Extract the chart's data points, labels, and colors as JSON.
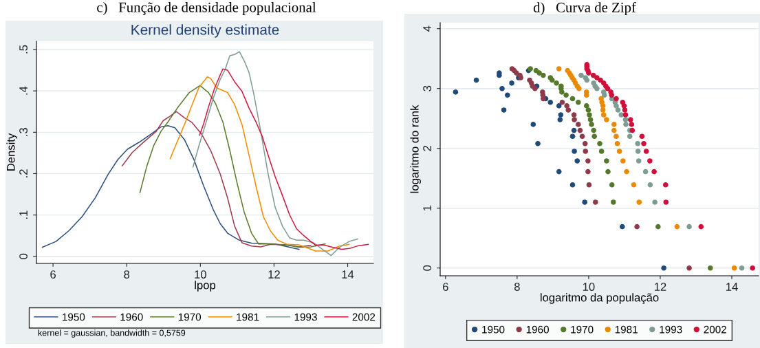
{
  "chart_data": [
    {
      "type": "line",
      "title": "c)   Função de densidade populacional",
      "subtitle": "Kernel density estimate",
      "xlabel": "lpop",
      "ylabel": "Density",
      "xlim": [
        5.55,
        14.7
      ],
      "ylim": [
        -0.017,
        0.52
      ],
      "xticks": [
        6,
        8,
        10,
        12,
        14
      ],
      "yticks": [
        0,
        {
          "value": 0.1,
          "label": ".1"
        },
        {
          "value": 0.2,
          "label": ".2"
        },
        {
          "value": 0.3,
          "label": ".3"
        },
        {
          "value": 0.4,
          "label": ".4"
        },
        {
          "value": 0.5,
          "label": ".5"
        }
      ],
      "grid": "y",
      "legend": "bottom",
      "line_style": "solid",
      "marker": "none",
      "annotations": [
        "kernel = gaussian, bandwidth = 0,5759"
      ],
      "series": [
        {
          "name": "1950",
          "color": "#2c4f7c",
          "x": [
            5.71,
            6.08,
            6.43,
            6.79,
            7.15,
            7.5,
            7.76,
            8.02,
            8.34,
            8.67,
            8.93,
            9.12,
            9.31,
            9.57,
            9.83,
            10.09,
            10.35,
            10.54,
            10.74,
            11.06,
            11.39,
            12.03,
            12.68
          ],
          "values": [
            0.022,
            0.036,
            0.062,
            0.096,
            0.142,
            0.199,
            0.234,
            0.259,
            0.276,
            0.296,
            0.313,
            0.316,
            0.311,
            0.282,
            0.233,
            0.17,
            0.113,
            0.079,
            0.056,
            0.039,
            0.032,
            0.03,
            0.017
          ]
        },
        {
          "name": "1960",
          "color": "#9c3a4e",
          "x": [
            7.88,
            8.15,
            8.47,
            8.8,
            8.99,
            9.18,
            9.35,
            9.57,
            9.77,
            10.03,
            10.28,
            10.54,
            10.74,
            10.93,
            11.13,
            11.39,
            11.64,
            11.9,
            12.36,
            12.68,
            13.0
          ],
          "values": [
            0.219,
            0.251,
            0.277,
            0.302,
            0.328,
            0.339,
            0.35,
            0.335,
            0.324,
            0.296,
            0.256,
            0.199,
            0.141,
            0.073,
            0.033,
            0.025,
            0.023,
            0.029,
            0.028,
            0.023,
            0.027
          ]
        },
        {
          "name": "1970",
          "color": "#5a7a2e",
          "x": [
            8.36,
            8.54,
            8.73,
            8.93,
            9.12,
            9.38,
            9.7,
            9.99,
            10.22,
            10.41,
            10.61,
            10.8,
            11.0,
            11.19,
            11.39,
            11.58,
            11.9,
            12.36,
            12.68,
            13.0,
            13.39
          ],
          "values": [
            0.154,
            0.216,
            0.267,
            0.302,
            0.325,
            0.359,
            0.396,
            0.413,
            0.396,
            0.37,
            0.325,
            0.256,
            0.176,
            0.107,
            0.056,
            0.03,
            0.03,
            0.027,
            0.022,
            0.023,
            0.03
          ]
        },
        {
          "name": "1981",
          "color": "#f28c00",
          "x": [
            9.18,
            9.38,
            9.57,
            9.77,
            9.96,
            10.19,
            10.28,
            10.45,
            10.61,
            10.74,
            10.93,
            11.13,
            11.32,
            11.51,
            11.71,
            11.9,
            12.1,
            12.36,
            12.68,
            13.13,
            13.46,
            13.78,
            14.04
          ],
          "values": [
            0.236,
            0.279,
            0.319,
            0.365,
            0.408,
            0.434,
            0.43,
            0.407,
            0.401,
            0.396,
            0.367,
            0.319,
            0.245,
            0.17,
            0.096,
            0.062,
            0.039,
            0.029,
            0.028,
            0.013,
            0.013,
            0.025,
            0.029
          ]
        },
        {
          "name": "1993",
          "color": "#7f9c94",
          "x": [
            9.8,
            9.96,
            10.16,
            10.35,
            10.54,
            10.67,
            10.8,
            10.93,
            11.06,
            11.19,
            11.32,
            11.45,
            11.64,
            11.84,
            12.03,
            12.23,
            12.42,
            12.61,
            12.81,
            13.07,
            13.33,
            13.55,
            13.78,
            14.04,
            14.27
          ],
          "values": [
            0.216,
            0.267,
            0.325,
            0.382,
            0.428,
            0.451,
            0.485,
            0.488,
            0.495,
            0.473,
            0.445,
            0.393,
            0.302,
            0.199,
            0.119,
            0.073,
            0.045,
            0.039,
            0.039,
            0.033,
            0.016,
            0.002,
            0.022,
            0.036,
            0.042
          ]
        },
        {
          "name": "2002",
          "color": "#d2173f",
          "x": [
            9.98,
            10.09,
            10.22,
            10.38,
            10.54,
            10.61,
            10.74,
            10.93,
            11.13,
            11.32,
            11.51,
            11.68,
            11.84,
            12.03,
            12.23,
            12.42,
            12.61,
            12.81,
            13.0,
            13.13,
            13.33,
            13.59,
            13.84,
            14.04,
            14.3,
            14.56
          ],
          "values": [
            0.293,
            0.321,
            0.361,
            0.405,
            0.439,
            0.453,
            0.45,
            0.422,
            0.399,
            0.359,
            0.325,
            0.29,
            0.245,
            0.193,
            0.147,
            0.101,
            0.067,
            0.05,
            0.036,
            0.027,
            0.028,
            0.022,
            0.017,
            0.019,
            0.026,
            0.029
          ]
        }
      ]
    },
    {
      "type": "scatter",
      "title": "d)   Curva de Zipf",
      "xlabel": "logaritmo da população",
      "ylabel": "logaritmo do rank",
      "xlim": [
        5.85,
        14.75
      ],
      "ylim": [
        -0.13,
        4.1
      ],
      "xticks": [
        6,
        8,
        10,
        12,
        14
      ],
      "yticks": [
        0,
        1,
        2,
        3,
        4
      ],
      "grid": "y",
      "legend": "bottom",
      "marker": "circle",
      "series": [
        {
          "name": "1950",
          "color": "#1f4a7a",
          "x": [
            12.1,
            10.94,
            9.89,
            9.55,
            9.17,
            9.68,
            9.6,
            8.58,
            9.55,
            9.59,
            8.45,
            9.2,
            9.22,
            7.63,
            9.17,
            8.93,
            8.8,
            7.73,
            6.28,
            7.58,
            8.55,
            7.85,
            6.86,
            8.04,
            7.5,
            7.5,
            8.32
          ],
          "values": [
            0,
            0.69,
            1.1,
            1.39,
            1.61,
            1.79,
            1.95,
            2.08,
            2.2,
            2.3,
            2.4,
            2.48,
            2.56,
            2.64,
            2.71,
            2.77,
            2.83,
            2.89,
            2.94,
            3.0,
            3.04,
            3.09,
            3.14,
            3.18,
            3.22,
            3.26,
            3.3
          ]
        },
        {
          "name": "1960",
          "color": "#8e3a4a",
          "x": [
            12.81,
            11.35,
            10.19,
            10.01,
            9.98,
            9.98,
            9.91,
            9.9,
            9.82,
            9.76,
            9.71,
            9.6,
            9.59,
            9.43,
            9.39,
            9.26,
            8.73,
            8.72,
            8.71,
            8.5,
            8.43,
            8.4,
            8.35,
            8.1,
            8.08,
            7.98,
            7.92,
            7.86
          ],
          "values": [
            0,
            0.69,
            1.1,
            1.39,
            1.61,
            1.79,
            1.95,
            2.08,
            2.2,
            2.3,
            2.4,
            2.48,
            2.56,
            2.64,
            2.71,
            2.77,
            2.83,
            2.89,
            2.94,
            3.0,
            3.04,
            3.09,
            3.14,
            3.18,
            3.22,
            3.26,
            3.3,
            3.33
          ]
        },
        {
          "name": "1970",
          "color": "#55792a",
          "x": [
            13.4,
            11.94,
            10.69,
            10.65,
            10.54,
            10.5,
            10.36,
            10.31,
            10.16,
            10.14,
            10.08,
            10.05,
            10.02,
            9.99,
            9.94,
            9.71,
            9.55,
            9.37,
            9.25,
            9.23,
            9.23,
            9.1,
            8.98,
            8.93,
            8.73,
            8.62,
            8.53,
            8.37
          ],
          "values": [
            0,
            0.69,
            1.1,
            1.39,
            1.61,
            1.79,
            1.95,
            2.08,
            2.2,
            2.3,
            2.4,
            2.48,
            2.56,
            2.64,
            2.71,
            2.77,
            2.83,
            2.89,
            2.94,
            3.0,
            3.04,
            3.09,
            3.14,
            3.18,
            3.22,
            3.26,
            3.3,
            3.33
          ]
        },
        {
          "name": "1981",
          "color": "#ea8a00",
          "x": [
            14.07,
            12.47,
            11.41,
            11.26,
            11.06,
            10.96,
            10.86,
            10.8,
            10.77,
            10.71,
            10.71,
            10.5,
            10.42,
            10.4,
            10.4,
            10.37,
            10.35,
            9.94,
            9.94,
            9.73,
            9.68,
            9.63,
            9.59,
            9.54,
            9.5,
            9.46,
            9.41,
            9.17
          ],
          "values": [
            0,
            0.69,
            1.1,
            1.39,
            1.61,
            1.79,
            1.95,
            2.08,
            2.2,
            2.3,
            2.4,
            2.48,
            2.56,
            2.64,
            2.71,
            2.77,
            2.83,
            2.89,
            2.94,
            3.0,
            3.04,
            3.09,
            3.14,
            3.18,
            3.22,
            3.26,
            3.3,
            3.33
          ]
        },
        {
          "name": "1993",
          "color": "#7f9c94",
          "x": [
            14.28,
            12.81,
            11.85,
            11.72,
            11.59,
            11.4,
            11.38,
            11.37,
            11.15,
            11.15,
            11.04,
            11.03,
            10.91,
            10.82,
            10.77,
            10.74,
            10.65,
            10.44,
            10.42,
            10.23,
            10.18,
            10.14,
            9.95,
            9.91,
            9.79
          ],
          "values": [
            0,
            0.69,
            1.1,
            1.39,
            1.61,
            1.79,
            1.95,
            2.08,
            2.2,
            2.3,
            2.4,
            2.48,
            2.56,
            2.64,
            2.71,
            2.77,
            2.83,
            2.89,
            2.94,
            3.0,
            3.04,
            3.09,
            3.14,
            3.18,
            3.22
          ]
        },
        {
          "name": "2002",
          "color": "#d0103a",
          "x": [
            14.58,
            13.14,
            12.16,
            12.15,
            11.83,
            11.71,
            11.61,
            11.54,
            11.49,
            11.22,
            11.2,
            11.17,
            11.03,
            11.01,
            10.99,
            10.95,
            10.77,
            10.64,
            10.62,
            10.53,
            10.48,
            10.42,
            10.33,
            10.23,
            10.13,
            10.0,
            9.98,
            9.95,
            9.95,
            9.95
          ],
          "values": [
            0,
            0.69,
            1.1,
            1.39,
            1.61,
            1.79,
            1.95,
            2.08,
            2.2,
            2.3,
            2.4,
            2.48,
            2.56,
            2.64,
            2.71,
            2.77,
            2.83,
            2.89,
            2.94,
            3.0,
            3.04,
            3.09,
            3.14,
            3.18,
            3.22,
            3.26,
            3.3,
            3.33,
            3.37,
            3.4
          ]
        }
      ]
    }
  ]
}
